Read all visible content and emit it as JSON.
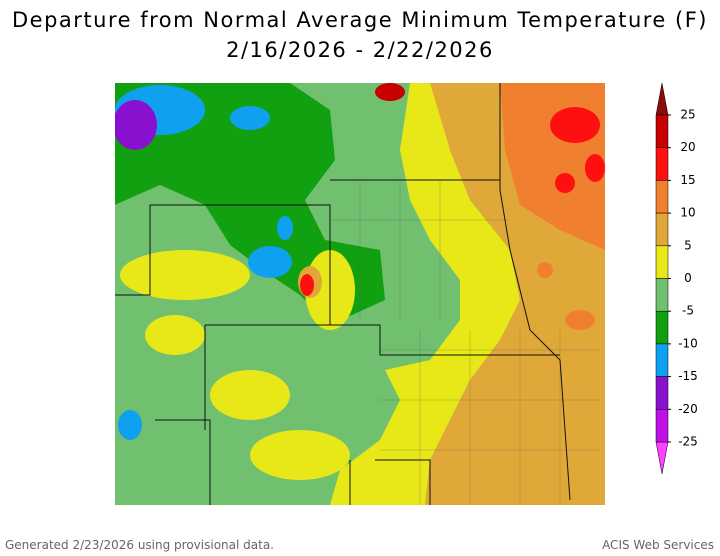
{
  "title": "Departure from Normal Average Minimum Temperature (F)",
  "subtitle": "2/16/2026 - 2/22/2026",
  "legend": {
    "ticks": [
      25,
      20,
      15,
      10,
      5,
      0,
      -5,
      -10,
      -15,
      -20,
      -25
    ],
    "colors": [
      "#8b0a0a",
      "#c80000",
      "#ff1010",
      "#f08030",
      "#e0a838",
      "#e8e818",
      "#70c070",
      "#10a010",
      "#10a0f0",
      "#8a10d0",
      "#c010e8",
      "#ff40ff"
    ]
  },
  "footer": {
    "left": "Generated 2/23/2026 using provisional data.",
    "right": "ACIS Web Services"
  }
}
